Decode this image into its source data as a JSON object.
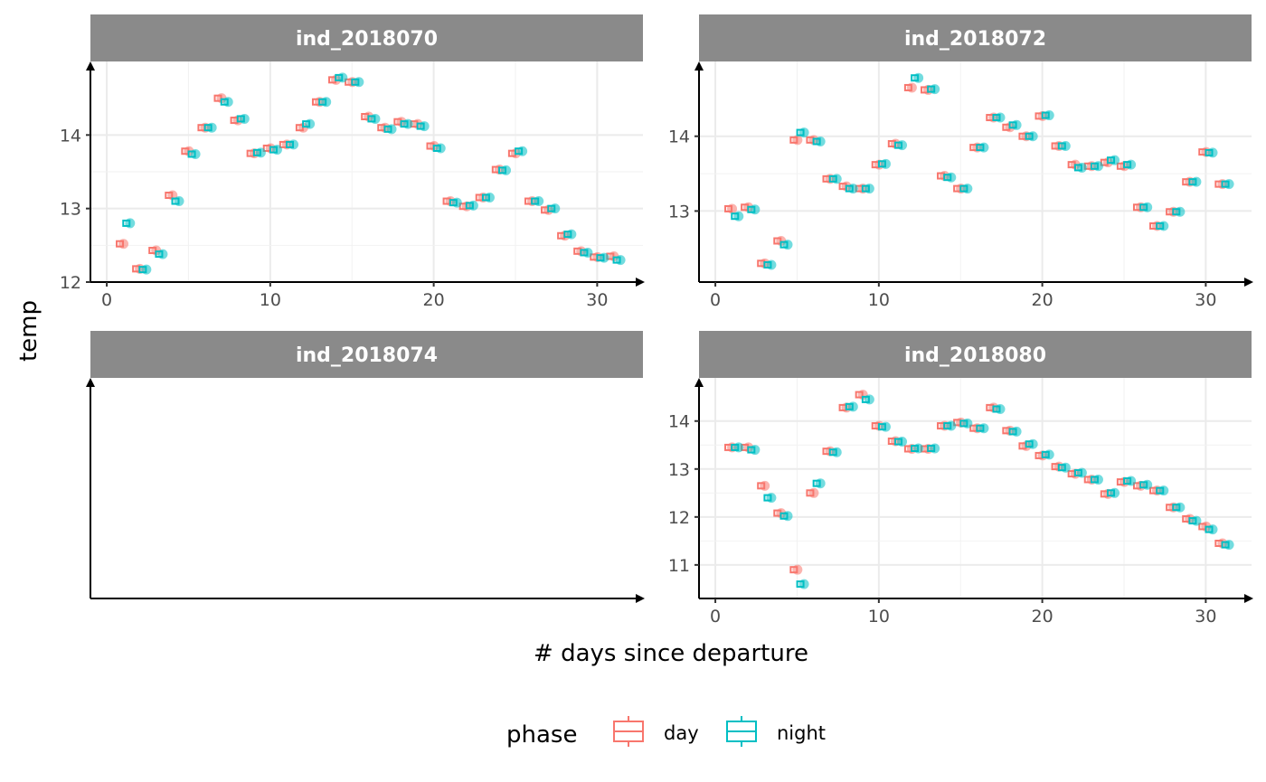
{
  "chart_data": {
    "type": "boxplot+scatter",
    "facet_by": "individual",
    "xlabel": "# days since departure",
    "ylabel": "temp",
    "x_ticks": [
      0,
      10,
      20,
      30
    ],
    "legend": {
      "title": "phase",
      "position": "bottom",
      "entries": [
        {
          "label": "day",
          "color": "#F8766D"
        },
        {
          "label": "night",
          "color": "#00BFC4"
        }
      ]
    },
    "grid": true,
    "panels": [
      {
        "name": "ind_2018070",
        "xlim": [
          -1,
          32.8
        ],
        "ylim": [
          12,
          15
        ],
        "y_ticks": [
          12,
          13,
          14
        ],
        "series": [
          {
            "name": "day",
            "points": [
              [
                0.8,
                12.52
              ],
              [
                1.8,
                12.18
              ],
              [
                2.8,
                12.43
              ],
              [
                3.8,
                13.18
              ],
              [
                4.8,
                13.78
              ],
              [
                5.8,
                14.1
              ],
              [
                6.8,
                14.5
              ],
              [
                7.8,
                14.2
              ],
              [
                8.8,
                13.75
              ],
              [
                9.8,
                13.82
              ],
              [
                10.8,
                13.87
              ],
              [
                11.8,
                14.1
              ],
              [
                12.8,
                14.45
              ],
              [
                13.8,
                14.75
              ],
              [
                14.8,
                14.72
              ],
              [
                15.8,
                14.25
              ],
              [
                16.8,
                14.1
              ],
              [
                17.8,
                14.18
              ],
              [
                18.8,
                14.15
              ],
              [
                19.8,
                13.85
              ],
              [
                20.8,
                13.1
              ],
              [
                21.8,
                13.03
              ],
              [
                22.8,
                13.15
              ],
              [
                23.8,
                13.53
              ],
              [
                24.8,
                13.75
              ],
              [
                25.8,
                13.1
              ],
              [
                26.8,
                12.98
              ],
              [
                27.8,
                12.63
              ],
              [
                28.8,
                12.42
              ],
              [
                29.8,
                12.34
              ],
              [
                30.8,
                12.35
              ]
            ]
          },
          {
            "name": "night",
            "points": [
              [
                1.2,
                12.8
              ],
              [
                2.2,
                12.17
              ],
              [
                3.2,
                12.38
              ],
              [
                4.2,
                13.1
              ],
              [
                5.2,
                13.74
              ],
              [
                6.2,
                14.1
              ],
              [
                7.2,
                14.45
              ],
              [
                8.2,
                14.22
              ],
              [
                9.2,
                13.76
              ],
              [
                10.2,
                13.8
              ],
              [
                11.2,
                13.87
              ],
              [
                12.2,
                14.15
              ],
              [
                13.2,
                14.45
              ],
              [
                14.2,
                14.78
              ],
              [
                15.2,
                14.72
              ],
              [
                16.2,
                14.22
              ],
              [
                17.2,
                14.08
              ],
              [
                18.2,
                14.15
              ],
              [
                19.2,
                14.12
              ],
              [
                20.2,
                13.82
              ],
              [
                21.2,
                13.08
              ],
              [
                22.2,
                13.04
              ],
              [
                23.2,
                13.15
              ],
              [
                24.2,
                13.52
              ],
              [
                25.2,
                13.78
              ],
              [
                26.2,
                13.1
              ],
              [
                27.2,
                13.0
              ],
              [
                28.2,
                12.65
              ],
              [
                29.2,
                12.4
              ],
              [
                30.2,
                12.33
              ],
              [
                31.2,
                12.3
              ]
            ]
          }
        ]
      },
      {
        "name": "ind_2018072",
        "xlim": [
          -1,
          32.8
        ],
        "ylim": [
          12.05,
          15
        ],
        "y_ticks": [
          13,
          14
        ],
        "series": [
          {
            "name": "day",
            "points": [
              [
                0.8,
                13.03
              ],
              [
                1.8,
                13.05
              ],
              [
                2.8,
                12.3
              ],
              [
                3.8,
                12.6
              ],
              [
                4.8,
                13.95
              ],
              [
                5.8,
                13.95
              ],
              [
                6.8,
                13.43
              ],
              [
                7.8,
                13.33
              ],
              [
                8.8,
                13.3
              ],
              [
                9.8,
                13.62
              ],
              [
                10.8,
                13.9
              ],
              [
                11.8,
                14.65
              ],
              [
                12.8,
                14.62
              ],
              [
                13.8,
                13.47
              ],
              [
                14.8,
                13.3
              ],
              [
                15.8,
                13.85
              ],
              [
                16.8,
                14.25
              ],
              [
                17.8,
                14.12
              ],
              [
                18.8,
                14.0
              ],
              [
                19.8,
                14.27
              ],
              [
                20.8,
                13.87
              ],
              [
                21.8,
                13.62
              ],
              [
                22.8,
                13.6
              ],
              [
                23.8,
                13.65
              ],
              [
                24.8,
                13.6
              ],
              [
                25.8,
                13.05
              ],
              [
                26.8,
                12.8
              ],
              [
                27.8,
                12.99
              ],
              [
                28.8,
                13.39
              ],
              [
                29.8,
                13.79
              ],
              [
                30.8,
                13.36
              ]
            ]
          },
          {
            "name": "night",
            "points": [
              [
                1.2,
                12.93
              ],
              [
                2.2,
                13.02
              ],
              [
                3.2,
                12.28
              ],
              [
                4.2,
                12.55
              ],
              [
                5.2,
                14.05
              ],
              [
                6.2,
                13.93
              ],
              [
                7.2,
                13.43
              ],
              [
                8.2,
                13.3
              ],
              [
                9.2,
                13.3
              ],
              [
                10.2,
                13.63
              ],
              [
                11.2,
                13.88
              ],
              [
                12.2,
                14.78
              ],
              [
                13.2,
                14.63
              ],
              [
                14.2,
                13.45
              ],
              [
                15.2,
                13.3
              ],
              [
                16.2,
                13.85
              ],
              [
                17.2,
                14.25
              ],
              [
                18.2,
                14.15
              ],
              [
                19.2,
                14.0
              ],
              [
                20.2,
                14.28
              ],
              [
                21.2,
                13.87
              ],
              [
                22.2,
                13.58
              ],
              [
                23.2,
                13.6
              ],
              [
                24.2,
                13.68
              ],
              [
                25.2,
                13.62
              ],
              [
                26.2,
                13.05
              ],
              [
                27.2,
                12.8
              ],
              [
                28.2,
                12.99
              ],
              [
                29.2,
                13.39
              ],
              [
                30.2,
                13.78
              ],
              [
                31.2,
                13.36
              ]
            ]
          }
        ]
      },
      {
        "name": "ind_2018074",
        "xlim": [
          -1,
          32.8
        ],
        "ylim": [
          0,
          1
        ],
        "y_ticks": [],
        "series": []
      },
      {
        "name": "ind_2018080",
        "xlim": [
          -1,
          32.8
        ],
        "ylim": [
          10.3,
          14.9
        ],
        "y_ticks": [
          11,
          12,
          13,
          14
        ],
        "series": [
          {
            "name": "day",
            "points": [
              [
                0.8,
                13.45
              ],
              [
                1.8,
                13.45
              ],
              [
                2.8,
                12.65
              ],
              [
                3.8,
                12.08
              ],
              [
                4.8,
                10.9
              ],
              [
                5.8,
                12.5
              ],
              [
                6.8,
                13.37
              ],
              [
                7.8,
                14.28
              ],
              [
                8.8,
                14.55
              ],
              [
                9.8,
                13.9
              ],
              [
                10.8,
                13.58
              ],
              [
                11.8,
                13.42
              ],
              [
                12.8,
                13.42
              ],
              [
                13.8,
                13.9
              ],
              [
                14.8,
                13.97
              ],
              [
                15.8,
                13.85
              ],
              [
                16.8,
                14.28
              ],
              [
                17.8,
                13.8
              ],
              [
                18.8,
                13.48
              ],
              [
                19.8,
                13.28
              ],
              [
                20.8,
                13.05
              ],
              [
                21.8,
                12.9
              ],
              [
                22.8,
                12.78
              ],
              [
                23.8,
                12.48
              ],
              [
                24.8,
                12.73
              ],
              [
                25.8,
                12.65
              ],
              [
                26.8,
                12.55
              ],
              [
                27.8,
                12.2
              ],
              [
                28.8,
                11.96
              ],
              [
                29.8,
                11.8
              ],
              [
                30.8,
                11.45
              ]
            ]
          },
          {
            "name": "night",
            "points": [
              [
                1.2,
                13.45
              ],
              [
                2.2,
                13.4
              ],
              [
                3.2,
                12.4
              ],
              [
                4.2,
                12.02
              ],
              [
                5.2,
                10.6
              ],
              [
                6.2,
                12.7
              ],
              [
                7.2,
                13.35
              ],
              [
                8.2,
                14.3
              ],
              [
                9.2,
                14.45
              ],
              [
                10.2,
                13.88
              ],
              [
                11.2,
                13.57
              ],
              [
                12.2,
                13.43
              ],
              [
                13.2,
                13.43
              ],
              [
                14.2,
                13.9
              ],
              [
                15.2,
                13.95
              ],
              [
                16.2,
                13.85
              ],
              [
                17.2,
                14.25
              ],
              [
                18.2,
                13.78
              ],
              [
                19.2,
                13.52
              ],
              [
                20.2,
                13.3
              ],
              [
                21.2,
                13.03
              ],
              [
                22.2,
                12.92
              ],
              [
                23.2,
                12.78
              ],
              [
                24.2,
                12.5
              ],
              [
                25.2,
                12.75
              ],
              [
                26.2,
                12.67
              ],
              [
                27.2,
                12.55
              ],
              [
                28.2,
                12.2
              ],
              [
                29.2,
                11.92
              ],
              [
                30.2,
                11.74
              ],
              [
                31.2,
                11.42
              ]
            ]
          }
        ]
      }
    ]
  }
}
